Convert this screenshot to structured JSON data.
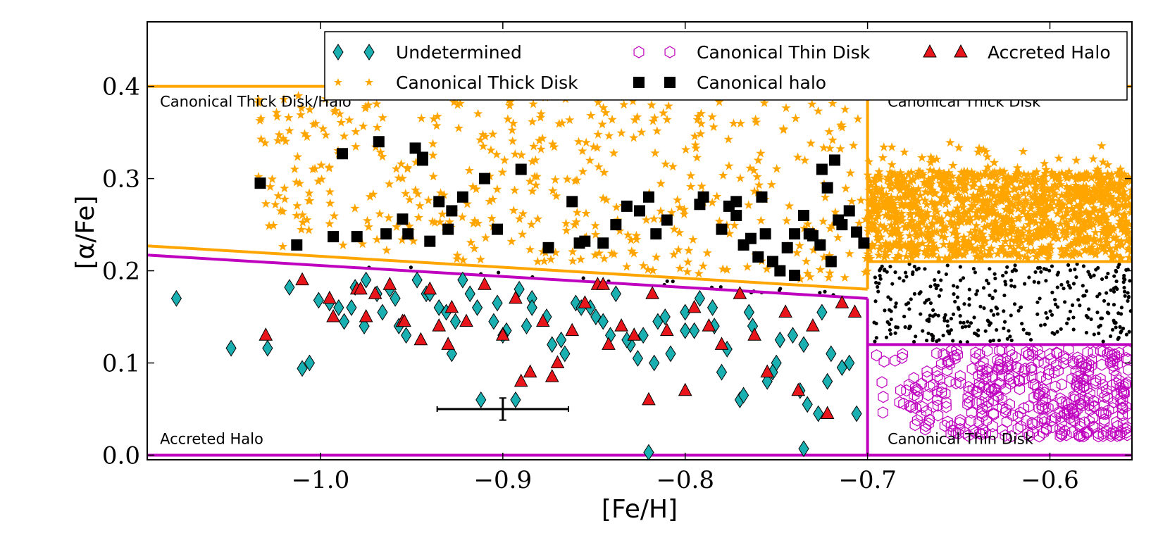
{
  "chart_data": {
    "type": "scatter",
    "title": "",
    "xlabel": "[Fe/H]",
    "ylabel": "[α/Fe]",
    "xlim": [
      -1.095,
      -0.555
    ],
    "ylim": [
      -0.005,
      0.47
    ],
    "xticks": [
      -1.0,
      -0.9,
      -0.8,
      -0.7,
      -0.6
    ],
    "xtick_labels": [
      "−1.0",
      "−0.9",
      "−0.8",
      "−0.7",
      "−0.6"
    ],
    "yticks": [
      0.0,
      0.1,
      0.2,
      0.3,
      0.4
    ],
    "ytick_labels": [
      "0.0",
      "0.1",
      "0.2",
      "0.3",
      "0.4"
    ],
    "colors": {
      "orange": "#FFA500",
      "magenta": "#BF00BF",
      "cyan": "#1AAFB0",
      "red": "#E8151B",
      "black": "#000000"
    },
    "boundaries": [
      {
        "name": "thick-disk-top",
        "color": "orange",
        "x": [
          -1.095,
          -0.555
        ],
        "y": [
          0.4,
          0.4
        ]
      },
      {
        "name": "thick-disk-lower-sloped",
        "color": "orange",
        "x": [
          -1.095,
          -0.7
        ],
        "y": [
          0.227,
          0.18
        ]
      },
      {
        "name": "thick-disk-vertical",
        "color": "orange",
        "x": [
          -0.7,
          -0.7
        ],
        "y": [
          0.18,
          0.4
        ]
      },
      {
        "name": "thick-disk-lower-flat",
        "color": "orange",
        "x": [
          -0.7,
          -0.555
        ],
        "y": [
          0.21,
          0.21
        ]
      },
      {
        "name": "thin-disk-sloped",
        "color": "magenta",
        "x": [
          -1.095,
          -0.7
        ],
        "y": [
          0.217,
          0.17
        ]
      },
      {
        "name": "thin-disk-vertical",
        "color": "magenta",
        "x": [
          -0.7,
          -0.7
        ],
        "y": [
          0.0,
          0.17
        ]
      },
      {
        "name": "thin-disk-top",
        "color": "magenta",
        "x": [
          -0.7,
          -0.555
        ],
        "y": [
          0.12,
          0.12
        ]
      },
      {
        "name": "zero-line",
        "color": "magenta",
        "x": [
          -1.095,
          -0.555
        ],
        "y": [
          0.0,
          0.0
        ]
      }
    ],
    "region_labels": [
      {
        "text": "Canonical Thick Disk/Halo",
        "x": -1.088,
        "y": 0.378
      },
      {
        "text": "Canonical Thick Disk",
        "x": -0.689,
        "y": 0.378
      },
      {
        "text": "Accreted Halo",
        "x": -1.088,
        "y": 0.012
      },
      {
        "text": "Canonical Thin Disk",
        "x": -0.689,
        "y": 0.012
      }
    ],
    "legend": {
      "position": "top",
      "entries": [
        {
          "label": "Undetermined",
          "marker": "diamond",
          "color": "cyan"
        },
        {
          "label": "Canonical Thick Disk",
          "marker": "star",
          "color": "orange"
        },
        {
          "label": "Canonical Thin Disk",
          "marker": "hexagon",
          "color": "magenta"
        },
        {
          "label": "Canonical halo",
          "marker": "square",
          "color": "black"
        },
        {
          "label": "Accreted Halo",
          "marker": "triangle",
          "color": "red"
        }
      ]
    },
    "error_bar": {
      "x": -0.9,
      "y": 0.05,
      "xerr": 0.036,
      "yerr": 0.012
    },
    "series": [
      {
        "name": "Undetermined",
        "marker": "diamond",
        "x": [
          -1.079,
          -1.049,
          -1.029,
          -1.01,
          -1.006,
          -1.017,
          -1.001,
          -0.99,
          -0.987,
          -0.981,
          -0.975,
          -0.969,
          -0.966,
          -0.959,
          -0.953,
          -0.942,
          -0.935,
          -0.928,
          -0.922,
          -0.914,
          -0.905,
          -0.898,
          -0.891,
          -0.884,
          -0.876,
          -0.868,
          -0.86,
          -0.852,
          -0.845,
          -0.838,
          -0.83,
          -0.823,
          -0.815,
          -0.808,
          -0.8,
          -0.792,
          -0.785,
          -0.777,
          -0.77,
          -0.763,
          -0.755,
          -0.748,
          -0.741,
          -0.733,
          -0.727,
          -0.72,
          -0.714,
          -0.71,
          -0.706,
          -0.995,
          -0.976,
          -0.962,
          -0.947,
          -0.931,
          -0.918,
          -0.903,
          -0.887,
          -0.873,
          -0.857,
          -0.841,
          -0.826,
          -0.811,
          -0.795,
          -0.78,
          -0.765,
          -0.75,
          -0.735,
          -0.722,
          -0.983,
          -0.957,
          -0.94,
          -0.926,
          -0.9,
          -0.884,
          -0.866,
          -0.849,
          -0.832,
          -0.817,
          -0.8,
          -0.784,
          -0.768,
          -0.752,
          -0.737,
          -0.725,
          -0.912,
          -0.893,
          -0.82,
          -0.735
        ],
        "y": [
          0.17,
          0.116,
          0.116,
          0.094,
          0.1,
          0.182,
          0.168,
          0.16,
          0.145,
          0.182,
          0.19,
          0.175,
          0.155,
          0.17,
          0.13,
          0.175,
          0.16,
          0.11,
          0.19,
          0.16,
          0.145,
          0.135,
          0.18,
          0.17,
          0.15,
          0.125,
          0.165,
          0.16,
          0.145,
          0.175,
          0.12,
          0.13,
          0.145,
          0.11,
          0.155,
          0.17,
          0.16,
          0.115,
          0.06,
          0.14,
          0.08,
          0.125,
          0.13,
          0.055,
          0.045,
          0.11,
          0.095,
          0.1,
          0.045,
          0.165,
          0.14,
          0.18,
          0.19,
          0.155,
          0.175,
          0.165,
          0.14,
          0.12,
          0.16,
          0.13,
          0.105,
          0.15,
          0.135,
          0.09,
          0.155,
          0.1,
          0.12,
          0.08,
          0.16,
          0.14,
          0.175,
          0.145,
          0.13,
          0.16,
          0.11,
          0.15,
          0.125,
          0.1,
          0.135,
          0.14,
          0.065,
          0.09,
          0.07,
          0.155,
          0.06,
          0.06,
          0.003,
          0.007
        ]
      },
      {
        "name": "Accreted Halo",
        "marker": "triangle",
        "x": [
          -1.03,
          -1.01,
          -0.995,
          -0.993,
          -0.98,
          -0.975,
          -0.97,
          -0.962,
          -0.955,
          -0.945,
          -0.94,
          -0.935,
          -0.93,
          -0.928,
          -0.92,
          -0.91,
          -0.9,
          -0.893,
          -0.885,
          -0.878,
          -0.87,
          -0.862,
          -0.855,
          -0.848,
          -0.842,
          -0.835,
          -0.828,
          -0.818,
          -0.81,
          -0.8,
          -0.795,
          -0.787,
          -0.78,
          -0.77,
          -0.762,
          -0.755,
          -0.745,
          -0.738,
          -0.73,
          -0.722,
          -0.714,
          -0.707,
          -0.978,
          -0.954,
          -0.89,
          -0.873,
          -0.845,
          -0.82
        ],
        "y": [
          0.13,
          0.19,
          0.17,
          0.15,
          0.18,
          0.15,
          0.175,
          0.185,
          0.145,
          0.125,
          0.18,
          0.14,
          0.12,
          0.16,
          0.145,
          0.185,
          0.13,
          0.17,
          0.09,
          0.145,
          0.1,
          0.135,
          0.165,
          0.185,
          0.12,
          0.14,
          0.13,
          0.175,
          0.135,
          0.07,
          0.16,
          0.14,
          0.12,
          0.175,
          0.13,
          0.09,
          0.155,
          0.07,
          0.14,
          0.045,
          0.165,
          0.155,
          0.18,
          0.145,
          0.08,
          0.085,
          0.185,
          0.06
        ]
      },
      {
        "name": "Canonical halo",
        "marker": "square",
        "x": [
          -1.033,
          -1.013,
          -0.993,
          -0.988,
          -0.98,
          -0.968,
          -0.955,
          -0.952,
          -0.948,
          -0.944,
          -0.94,
          -0.935,
          -0.93,
          -0.928,
          -0.922,
          -0.91,
          -0.89,
          -0.875,
          -0.862,
          -0.855,
          -0.845,
          -0.838,
          -0.832,
          -0.825,
          -0.82,
          -0.816,
          -0.81,
          -0.792,
          -0.79,
          -0.78,
          -0.776,
          -0.772,
          -0.768,
          -0.764,
          -0.76,
          -0.756,
          -0.752,
          -0.748,
          -0.744,
          -0.74,
          -0.735,
          -0.73,
          -0.726,
          -0.722,
          -0.718,
          -0.714,
          -0.71,
          -0.706,
          -0.702,
          -0.72,
          -0.725,
          -0.732,
          -0.964,
          -0.944,
          -0.903,
          -0.858,
          -0.772,
          -0.758,
          -0.74,
          -0.716
        ],
        "y": [
          0.295,
          0.228,
          0.237,
          0.327,
          0.237,
          0.34,
          0.256,
          0.24,
          0.333,
          0.323,
          0.232,
          0.275,
          0.245,
          0.265,
          0.28,
          0.3,
          0.31,
          0.225,
          0.275,
          0.232,
          0.23,
          0.25,
          0.27,
          0.265,
          0.28,
          0.24,
          0.255,
          0.272,
          0.28,
          0.245,
          0.27,
          0.26,
          0.228,
          0.235,
          0.215,
          0.24,
          0.21,
          0.2,
          0.225,
          0.195,
          0.26,
          0.238,
          0.228,
          0.29,
          0.32,
          0.25,
          0.265,
          0.242,
          0.23,
          0.21,
          0.31,
          0.24,
          0.24,
          0.32,
          0.245,
          0.23,
          0.275,
          0.28,
          0.24,
          0.255
        ]
      }
    ]
  }
}
